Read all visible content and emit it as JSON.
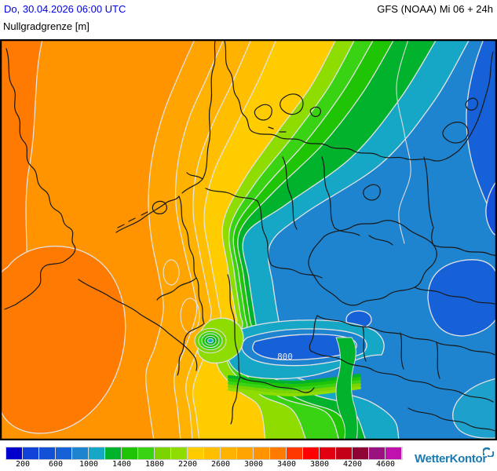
{
  "header": {
    "datetime": "Do, 30.04.2026 06:00 UTC",
    "datetime_color": "#0000dd",
    "parameter": "Nullgradgrenze [m]",
    "model": "GFS (NOAA) Mi 06 + 24h"
  },
  "map": {
    "contour_label": "800",
    "contour_line_color": "#e2e2e2",
    "border_line_color": "#181818",
    "frame_color": "#000000"
  },
  "legend": {
    "unit": "m",
    "tick_labels": [
      "200",
      "600",
      "1000",
      "1400",
      "1800",
      "2200",
      "2600",
      "3000",
      "3400",
      "3800",
      "4200",
      "4600"
    ],
    "swatches": [
      {
        "range": "0-200",
        "color": "#0000cd"
      },
      {
        "range": "200-400",
        "color": "#1041d8"
      },
      {
        "range": "400-600",
        "color": "#1350d8"
      },
      {
        "range": "600-800",
        "color": "#1661d8"
      },
      {
        "range": "800-1000",
        "color": "#1e84d0"
      },
      {
        "range": "1000-1200",
        "color": "#16a7c6"
      },
      {
        "range": "1200-1400",
        "color": "#00b22c"
      },
      {
        "range": "1400-1600",
        "color": "#1fc405"
      },
      {
        "range": "1600-1800",
        "color": "#3ad313"
      },
      {
        "range": "1800-2000",
        "color": "#7bd400"
      },
      {
        "range": "2000-2200",
        "color": "#8edc00"
      },
      {
        "range": "2200-2400",
        "color": "#ffcc00"
      },
      {
        "range": "2400-2600",
        "color": "#ffbe00"
      },
      {
        "range": "2600-2800",
        "color": "#ffb200"
      },
      {
        "range": "2800-3000",
        "color": "#ffa400"
      },
      {
        "range": "3000-3200",
        "color": "#ff9400"
      },
      {
        "range": "3200-3400",
        "color": "#ff7a00"
      },
      {
        "range": "3400-3600",
        "color": "#ff3800"
      },
      {
        "range": "3600-3800",
        "color": "#fe0000"
      },
      {
        "range": "3800-4000",
        "color": "#e10010"
      },
      {
        "range": "4000-4200",
        "color": "#c40019"
      },
      {
        "range": "4200-4400",
        "color": "#8e0434"
      },
      {
        "range": "4400-4600",
        "color": "#9a1180"
      },
      {
        "range": "4600-4800",
        "color": "#c011ae"
      }
    ]
  },
  "footer": {
    "brand": "WetterKontor",
    "brand_color": "#1a7ab0"
  }
}
